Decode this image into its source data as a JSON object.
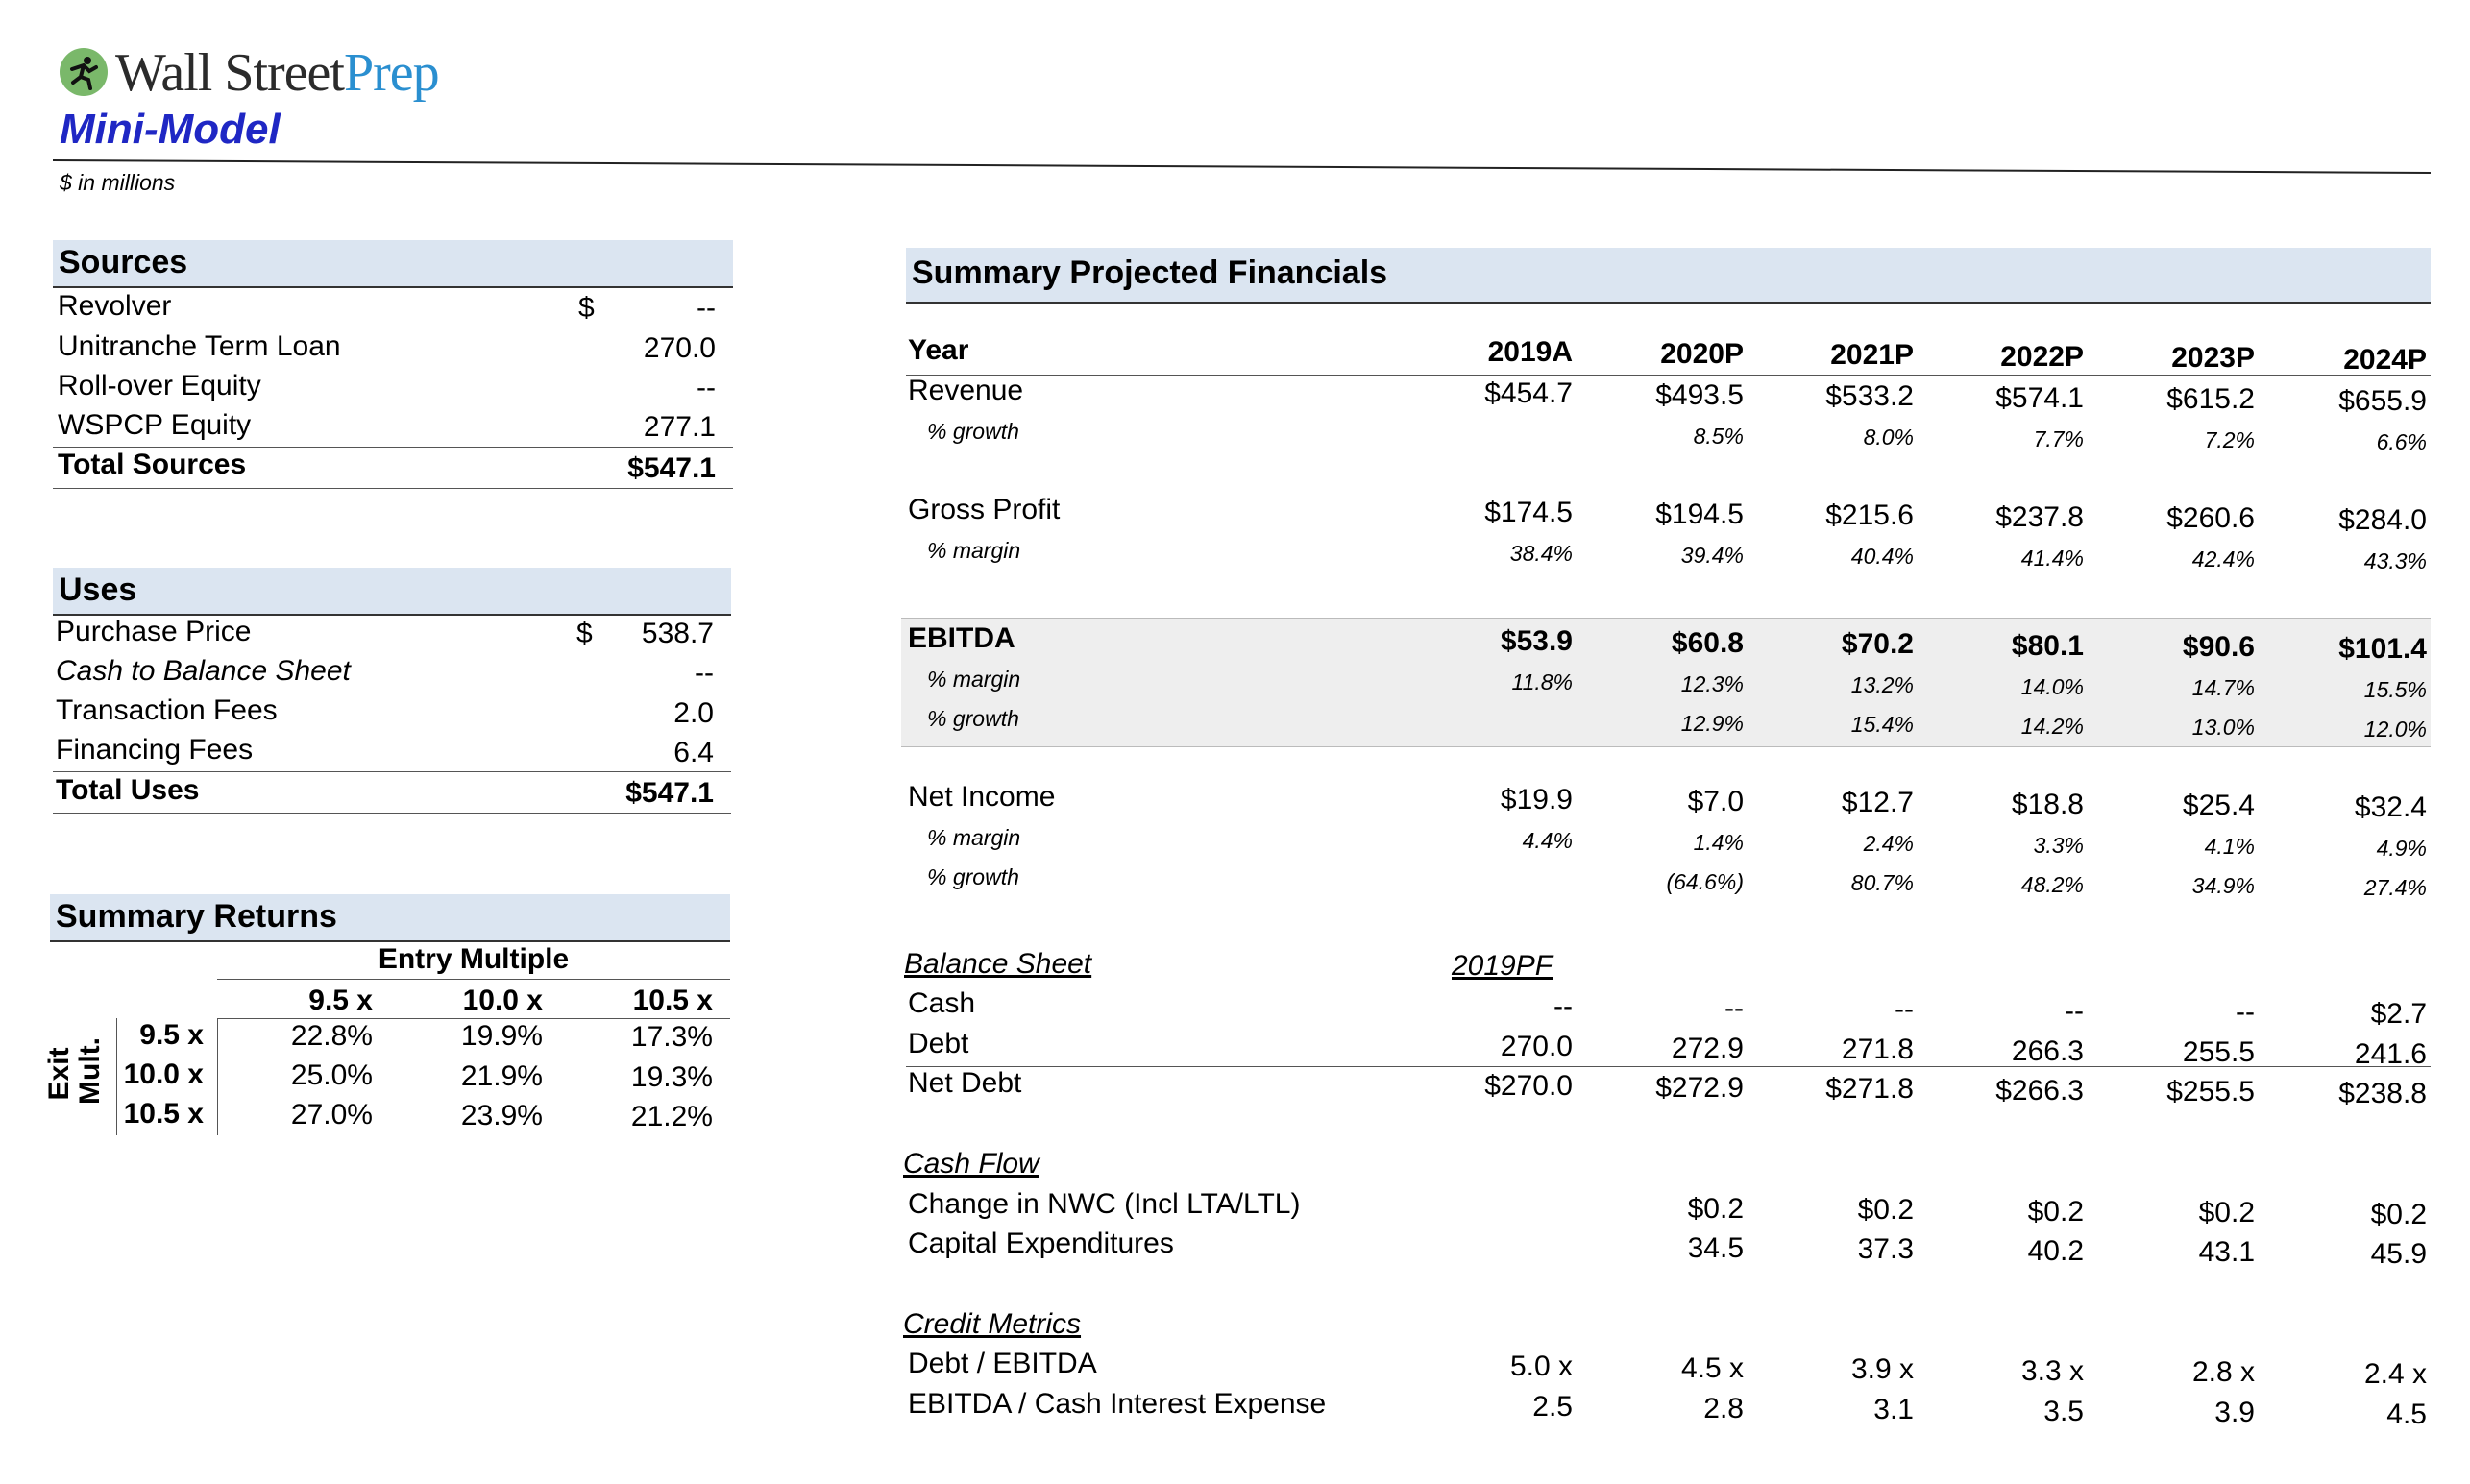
{
  "header": {
    "logo_part1": "Wall Street",
    "logo_part2": "Prep",
    "title": "Mini-Model",
    "units_note": "$ in millions",
    "brand_colors": {
      "logo_dark": "#2b2b2b",
      "logo_blue": "#2a8fd0",
      "title_blue": "#1f27c4",
      "logo_mark": "#7ab86a"
    }
  },
  "sources": {
    "heading": "Sources",
    "currency_symbol": "$",
    "rows": [
      {
        "label": "Revolver",
        "value": "--"
      },
      {
        "label": "Unitranche Term Loan",
        "value": "270.0"
      },
      {
        "label": "Roll-over Equity",
        "value": "--"
      },
      {
        "label": "WSPCP Equity",
        "value": "277.1"
      }
    ],
    "total_label": "Total Sources",
    "total_value": "$547.1"
  },
  "uses": {
    "heading": "Uses",
    "currency_symbol": "$",
    "rows": [
      {
        "label": "Purchase Price",
        "value": "538.7"
      },
      {
        "label": "Cash to Balance Sheet",
        "value": "--"
      },
      {
        "label": "Transaction Fees",
        "value": "2.0"
      },
      {
        "label": "Financing Fees",
        "value": "6.4"
      }
    ],
    "total_label": "Total Uses",
    "total_value": "$547.1"
  },
  "returns": {
    "heading": "Summary Returns",
    "entry_label": "Entry Multiple",
    "exit_label_1": "Exit",
    "exit_label_2": "Mult.",
    "entry_multiples": [
      "9.5 x",
      "10.0 x",
      "10.5 x"
    ],
    "exit_rows": [
      {
        "exit": "9.5 x",
        "values": [
          "22.8%",
          "19.9%",
          "17.3%"
        ]
      },
      {
        "exit": "10.0 x",
        "values": [
          "25.0%",
          "21.9%",
          "19.3%"
        ]
      },
      {
        "exit": "10.5 x",
        "values": [
          "27.0%",
          "23.9%",
          "21.2%"
        ]
      }
    ]
  },
  "projections": {
    "heading": "Summary Projected Financials",
    "year_label": "Year",
    "years": [
      "2019A",
      "2020P",
      "2021P",
      "2022P",
      "2023P",
      "2024P"
    ],
    "revenue": {
      "label": "Revenue",
      "values": [
        "$454.7",
        "$493.5",
        "$533.2",
        "$574.1",
        "$615.2",
        "$655.9"
      ]
    },
    "revenue_growth": {
      "label": "% growth",
      "values": [
        "",
        "8.5%",
        "8.0%",
        "7.7%",
        "7.2%",
        "6.6%"
      ]
    },
    "gross_profit": {
      "label": "Gross Profit",
      "values": [
        "$174.5",
        "$194.5",
        "$215.6",
        "$237.8",
        "$260.6",
        "$284.0"
      ]
    },
    "gross_margin": {
      "label": "% margin",
      "values": [
        "38.4%",
        "39.4%",
        "40.4%",
        "41.4%",
        "42.4%",
        "43.3%"
      ]
    },
    "ebitda": {
      "label": "EBITDA",
      "values": [
        "$53.9",
        "$60.8",
        "$70.2",
        "$80.1",
        "$90.6",
        "$101.4"
      ]
    },
    "ebitda_margin": {
      "label": "% margin",
      "values": [
        "11.8%",
        "12.3%",
        "13.2%",
        "14.0%",
        "14.7%",
        "15.5%"
      ]
    },
    "ebitda_growth": {
      "label": "% growth",
      "values": [
        "",
        "12.9%",
        "15.4%",
        "14.2%",
        "13.0%",
        "12.0%"
      ]
    },
    "net_income": {
      "label": "Net Income",
      "values": [
        "$19.9",
        "$7.0",
        "$12.7",
        "$18.8",
        "$25.4",
        "$32.4"
      ]
    },
    "ni_margin": {
      "label": "% margin",
      "values": [
        "4.4%",
        "1.4%",
        "2.4%",
        "3.3%",
        "4.1%",
        "4.9%"
      ]
    },
    "ni_growth": {
      "label": "% growth",
      "values": [
        "",
        "(64.6%)",
        "80.7%",
        "48.2%",
        "34.9%",
        "27.4%"
      ]
    }
  },
  "balance_sheet": {
    "heading": "Balance Sheet",
    "pf_label": "2019PF",
    "cash": {
      "label": "Cash",
      "values": [
        "--",
        "--",
        "--",
        "--",
        "--",
        "$2.7"
      ]
    },
    "debt": {
      "label": "Debt",
      "values": [
        "270.0",
        "272.9",
        "271.8",
        "266.3",
        "255.5",
        "241.6"
      ]
    },
    "net_debt": {
      "label": "Net Debt",
      "values": [
        "$270.0",
        "$272.9",
        "$271.8",
        "$266.3",
        "$255.5",
        "$238.8"
      ]
    }
  },
  "cash_flow": {
    "heading": "Cash Flow",
    "nwc": {
      "label": "Change in NWC (Incl LTA/LTL)",
      "values": [
        "",
        "$0.2",
        "$0.2",
        "$0.2",
        "$0.2",
        "$0.2"
      ]
    },
    "capex": {
      "label": "Capital Expenditures",
      "values": [
        "",
        "34.5",
        "37.3",
        "40.2",
        "43.1",
        "45.9"
      ]
    }
  },
  "credit": {
    "heading": "Credit Metrics",
    "debt_ebitda": {
      "label": "Debt / EBITDA",
      "values": [
        "5.0 x",
        "4.5 x",
        "3.9 x",
        "3.3 x",
        "2.8 x",
        "2.4 x"
      ]
    },
    "coverage": {
      "label": "EBITDA / Cash Interest Expense",
      "values": [
        "2.5",
        "2.8",
        "3.1",
        "3.5",
        "3.9",
        "4.5"
      ]
    }
  }
}
